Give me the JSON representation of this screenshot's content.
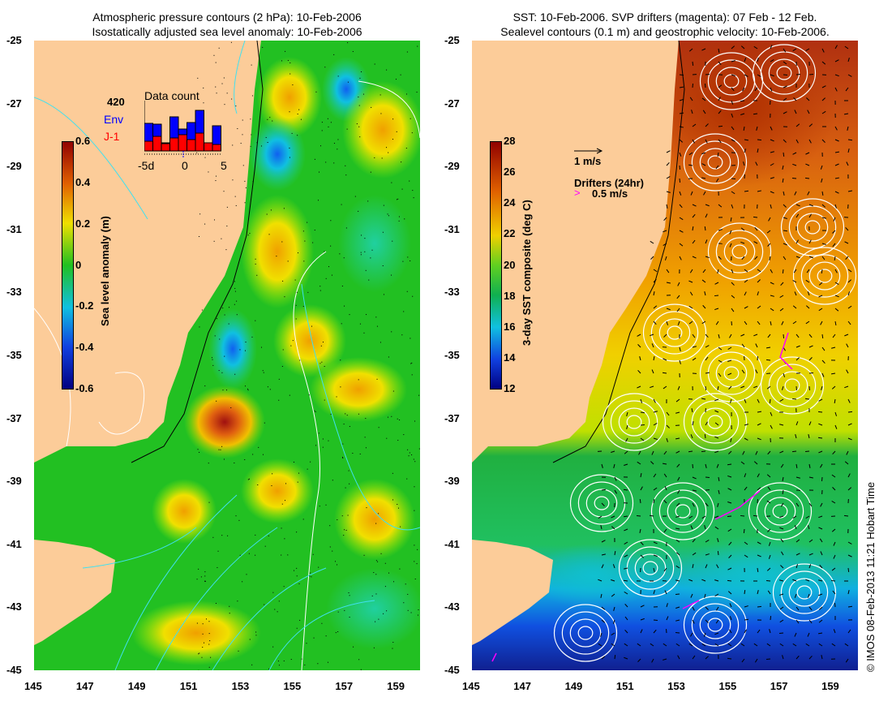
{
  "left_panel": {
    "title_line1": "Atmospheric pressure contours (2 hPa): 10-Feb-2006",
    "title_line2": "Isostatically adjusted sea level anomaly: 10-Feb-2006",
    "colorbar": {
      "label": "Sea level anomaly (m)",
      "ticks": [
        "0.6",
        "0.4",
        "0.2",
        "0",
        "-0.2",
        "-0.4",
        "-0.6"
      ],
      "range": [
        -0.6,
        0.6
      ]
    },
    "inset": {
      "count": "420",
      "series1": "Env",
      "series2": "J-1",
      "title": "Data count",
      "xticks": [
        "-5d",
        "0",
        "5"
      ],
      "env_color": "#0000ff",
      "j1_color": "#ff0000",
      "bars_total": [
        34,
        33,
        10,
        42,
        27,
        35,
        50,
        10,
        31
      ],
      "bars_j1": [
        12,
        18,
        9,
        16,
        20,
        14,
        22,
        10,
        8
      ]
    }
  },
  "right_panel": {
    "title_line1": "SST: 10-Feb-2006. SVP drifters (magenta): 07 Feb - 12 Feb.",
    "title_line2": "Sealevel contours (0.1 m) and geostrophic velocity: 10-Feb-2006.",
    "colorbar": {
      "label": "3-day SST composite (deg C)",
      "ticks": [
        "28",
        "26",
        "24",
        "22",
        "20",
        "18",
        "16",
        "14",
        "12"
      ],
      "range": [
        12,
        28
      ]
    },
    "velocity_legend": "1 m/s",
    "drifters_legend": "Drifters (24hr)",
    "drifters_speed": "0.5 m/s",
    "drifter_color": "#ff00ff"
  },
  "axes": {
    "lat_ticks": [
      "-25",
      "-27",
      "-29",
      "-31",
      "-33",
      "-35",
      "-37",
      "-39",
      "-41",
      "-43",
      "-45"
    ],
    "lon_ticks": [
      "145",
      "147",
      "149",
      "151",
      "153",
      "155",
      "157",
      "159"
    ]
  },
  "copyright": "© IMOS 08-Feb-2013 11:21 Hobart Time",
  "colors": {
    "land": "#fccc99",
    "ocean_base": "#22c022"
  }
}
